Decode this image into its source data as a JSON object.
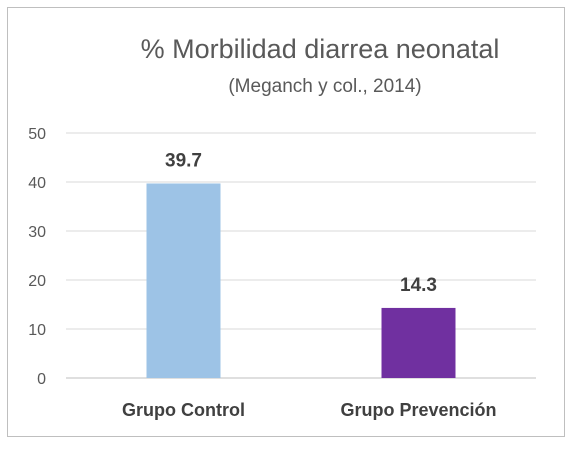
{
  "chart_data": {
    "type": "bar",
    "title": "% Morbilidad diarrea neonatal",
    "subtitle": "(Meganch y col., 2014)",
    "categories": [
      "Grupo Control",
      "Grupo Prevención"
    ],
    "values": [
      39.7,
      14.3
    ],
    "data_labels": [
      "39.7",
      "14.3"
    ],
    "bar_colors": [
      "#9dc3e6",
      "#7030a0"
    ],
    "ylim": [
      0,
      50
    ],
    "yticks": [
      0,
      10,
      20,
      30,
      40,
      50
    ],
    "grid": true,
    "legend": "none",
    "xlabel": "",
    "ylabel": ""
  }
}
